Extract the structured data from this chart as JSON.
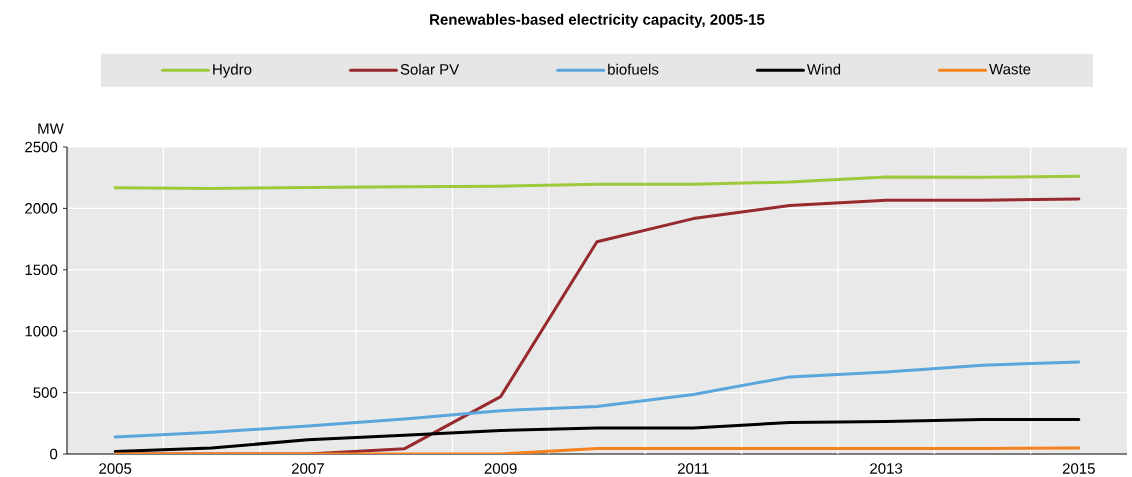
{
  "chart_data": {
    "type": "line",
    "title": "Renewables-based electricity capacity, 2005-15",
    "ylabel": "MW",
    "categories": [
      "2005",
      null,
      "2007",
      null,
      "2009",
      null,
      "2011",
      null,
      "2013",
      null,
      "2015"
    ],
    "series": [
      {
        "name": "Hydro",
        "color": "#9dc93a",
        "values": [
          2168,
          2162,
          2170,
          2176,
          2181,
          2197,
          2197,
          2215,
          2256,
          2253,
          2262
        ]
      },
      {
        "name": "Solar PV",
        "color": "#962a2e",
        "values": [
          0,
          0,
          0,
          42,
          467,
          1729,
          1917,
          2024,
          2066,
          2066,
          2077
        ]
      },
      {
        "name": "biofuels",
        "color": "#5aa6dc",
        "values": [
          139,
          178,
          229,
          286,
          353,
          387,
          485,
          628,
          667,
          723,
          750
        ]
      },
      {
        "name": "Wind",
        "color": "#000000",
        "values": [
          20,
          48,
          117,
          153,
          192,
          212,
          212,
          256,
          265,
          280,
          280
        ]
      },
      {
        "name": "Waste",
        "color": "#f58220",
        "values": [
          0,
          0,
          0,
          0,
          0,
          45,
          45,
          45,
          45,
          45,
          48
        ]
      }
    ],
    "ylim": [
      0,
      2500
    ],
    "yticks": [
      0,
      500,
      1000,
      1500,
      2000,
      2500
    ],
    "grid": true,
    "legend": "top",
    "marker": "none",
    "line_style": "solid"
  }
}
